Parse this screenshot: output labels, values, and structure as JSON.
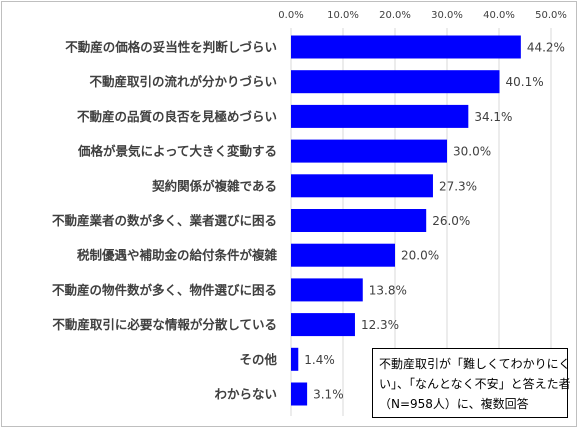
{
  "chart_data": {
    "type": "bar",
    "orientation": "horizontal",
    "categories": [
      "不動産の価格の妥当性を判断しづらい",
      "不動産取引の流れが分かりづらい",
      "不動産の品質の良否を見極めづらい",
      "価格が景気によって大きく変動する",
      "契約関係が複雑である",
      "不動産業者の数が多く、業者選びに困る",
      "税制優遇や補助金の給付条件が複雑",
      "不動産の物件数が多く、物件選びに困る",
      "不動産取引に必要な情報が分散している",
      "その他",
      "わからない"
    ],
    "values": [
      44.2,
      40.1,
      34.1,
      30.0,
      27.3,
      26.0,
      20.0,
      13.8,
      12.3,
      1.4,
      3.1
    ],
    "value_labels": [
      "44.2%",
      "40.1%",
      "34.1%",
      "30.0%",
      "27.3%",
      "26.0%",
      "20.0%",
      "13.8%",
      "12.3%",
      "1.4%",
      "3.1%"
    ],
    "xlim": [
      0,
      50
    ],
    "x_ticks": [
      "0.0%",
      "10.0%",
      "20.0%",
      "30.0%",
      "40.0%",
      "50.0%"
    ],
    "bar_color": "#0000FF",
    "grid": true,
    "legend": null,
    "title": "",
    "xlabel": "",
    "ylabel": ""
  },
  "note": {
    "lines": [
      "不動産取引が「難しくてわかりにく",
      "い」、「なんとなく不安」と答えた者",
      "（N=958人）に、複数回答"
    ]
  }
}
